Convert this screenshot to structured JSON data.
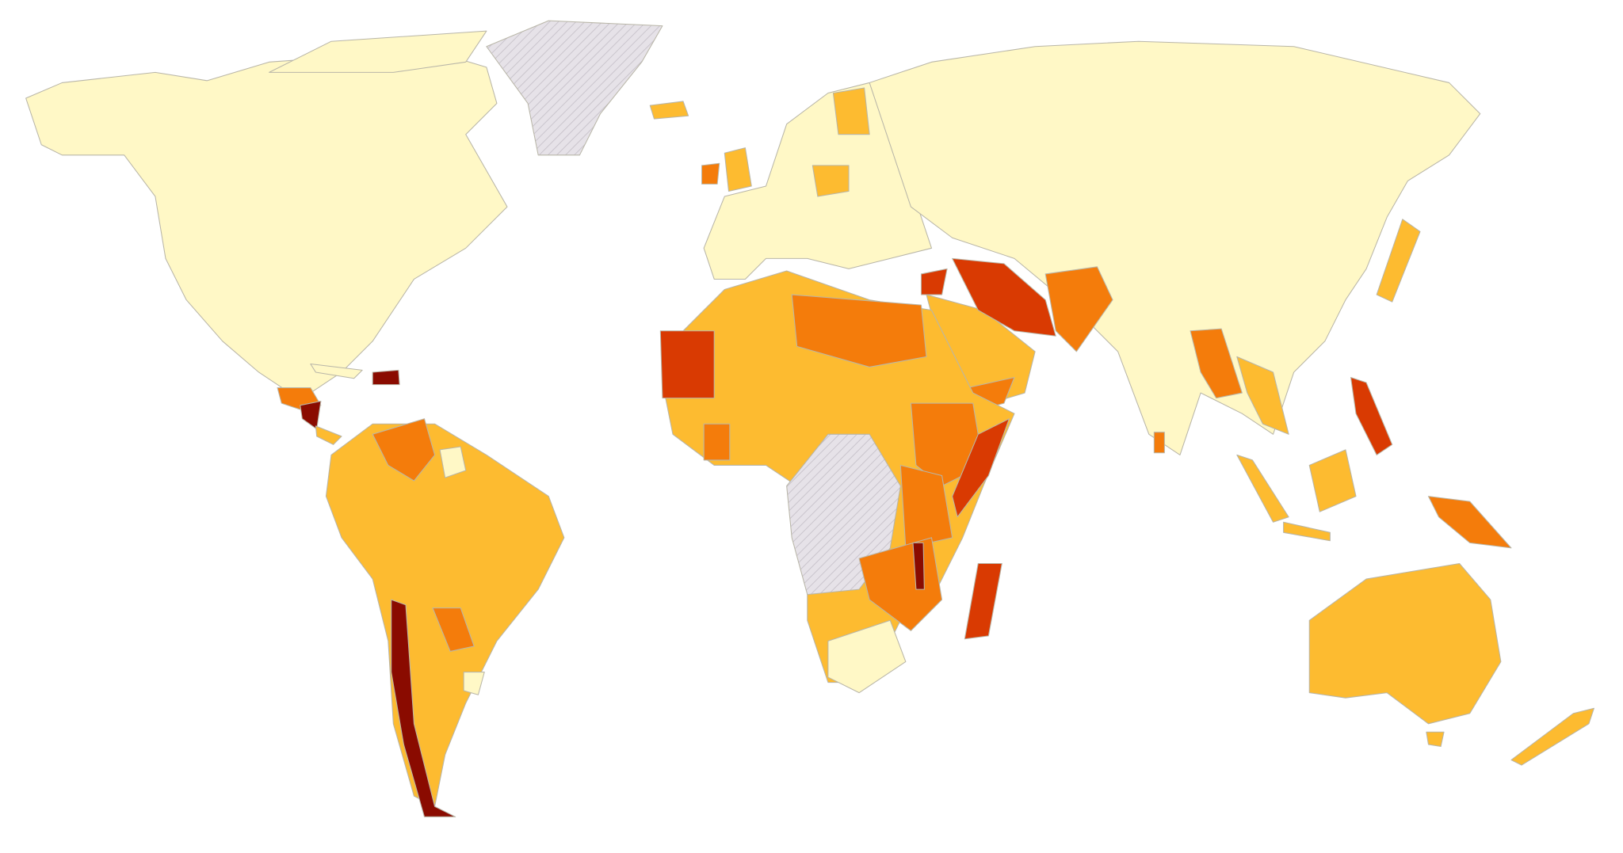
{
  "map": {
    "colors": [
      "#fff8c6",
      "#fdbb30",
      "#f47c0b",
      "#d93a02",
      "#8a0b00",
      "#e6e2e8"
    ]
  }
}
